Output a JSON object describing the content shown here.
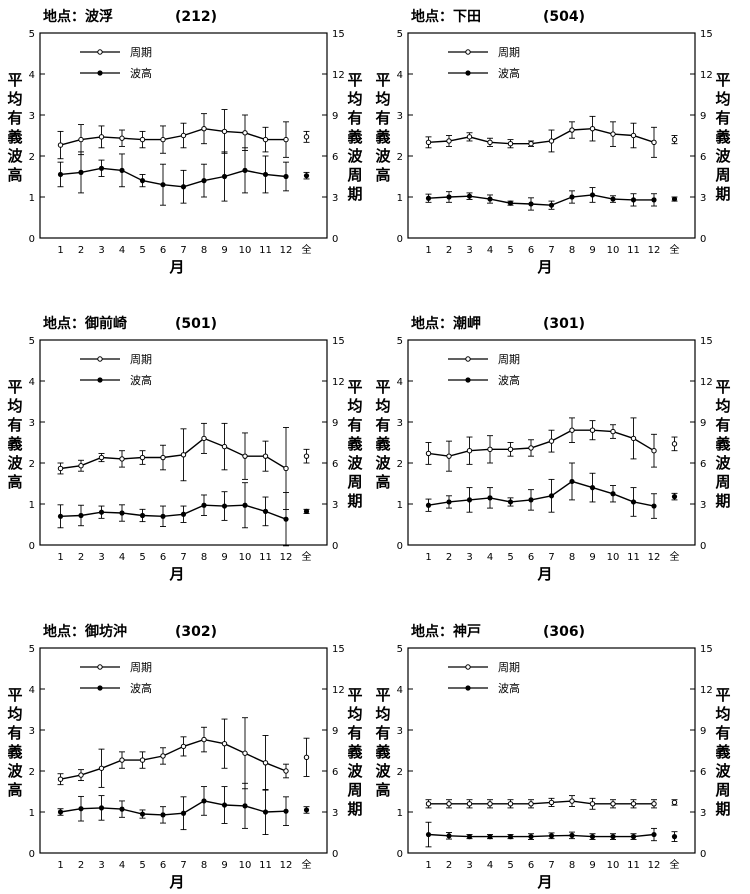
{
  "common": {
    "x_categories": [
      "1",
      "2",
      "3",
      "4",
      "5",
      "6",
      "7",
      "8",
      "9",
      "10",
      "11",
      "12",
      "全"
    ],
    "xlabel": "月",
    "ylabel_left": "平均有義波高",
    "ylabel_right": "平均有義波周期",
    "legend_period": "周期",
    "legend_height": "波高",
    "left_ticks": [
      "0",
      "1",
      "2",
      "3",
      "4",
      "5"
    ],
    "right_ticks": [
      "0",
      "3",
      "6",
      "9",
      "12",
      "15"
    ]
  },
  "chart_data": [
    {
      "type": "line",
      "title": "地点：波浮",
      "code": "(212)",
      "categories": [
        "1",
        "2",
        "3",
        "4",
        "5",
        "6",
        "7",
        "8",
        "9",
        "10",
        "11",
        "12"
      ],
      "xlabel": "月",
      "ylabel": "平均有義波高",
      "y2label": "平均有義波周期",
      "ylim": [
        0,
        5
      ],
      "y2lim": [
        0,
        15
      ],
      "legend": "top-left",
      "series": [
        {
          "name": "周期",
          "axis": "right",
          "marker": "open",
          "values": [
            6.8,
            7.2,
            7.4,
            7.3,
            7.2,
            7.2,
            7.5,
            8.0,
            7.8,
            7.7,
            7.2,
            7.2
          ],
          "errors": [
            1.0,
            1.1,
            0.8,
            0.6,
            0.6,
            1.0,
            0.9,
            1.1,
            1.6,
            1.3,
            0.9,
            1.3
          ],
          "overall": 7.4,
          "overall_error": 0.4
        },
        {
          "name": "波高",
          "axis": "left",
          "marker": "filled",
          "values": [
            1.55,
            1.6,
            1.7,
            1.65,
            1.4,
            1.3,
            1.25,
            1.4,
            1.5,
            1.65,
            1.55,
            1.5
          ],
          "errors": [
            0.3,
            0.5,
            0.2,
            0.4,
            0.15,
            0.5,
            0.4,
            0.4,
            0.6,
            0.55,
            0.45,
            0.35
          ],
          "overall": 1.52,
          "overall_error": 0.08
        }
      ]
    },
    {
      "type": "line",
      "title": "地点：下田",
      "code": "(504)",
      "categories": [
        "1",
        "2",
        "3",
        "4",
        "5",
        "6",
        "7",
        "8",
        "9",
        "10",
        "11",
        "12"
      ],
      "xlabel": "月",
      "ylabel": "平均有義波高",
      "y2label": "平均有義波周期",
      "ylim": [
        0,
        5
      ],
      "y2lim": [
        0,
        15
      ],
      "legend": "top-left",
      "series": [
        {
          "name": "周期",
          "axis": "right",
          "marker": "open",
          "values": [
            7.0,
            7.1,
            7.4,
            7.0,
            6.9,
            6.9,
            7.1,
            7.9,
            8.0,
            7.6,
            7.5,
            7.0
          ],
          "errors": [
            0.4,
            0.4,
            0.3,
            0.3,
            0.3,
            0.2,
            0.8,
            0.6,
            0.9,
            0.9,
            0.9,
            1.1
          ],
          "overall": 7.2,
          "overall_error": 0.3
        },
        {
          "name": "波高",
          "axis": "left",
          "marker": "filled",
          "values": [
            0.97,
            1.0,
            1.02,
            0.95,
            0.85,
            0.83,
            0.8,
            1.0,
            1.05,
            0.95,
            0.93,
            0.93
          ],
          "errors": [
            0.1,
            0.13,
            0.08,
            0.1,
            0.05,
            0.15,
            0.1,
            0.15,
            0.18,
            0.08,
            0.15,
            0.15
          ],
          "overall": 0.95,
          "overall_error": 0.05
        }
      ]
    },
    {
      "type": "line",
      "title": "地点：御前崎",
      "code": "(501)",
      "categories": [
        "1",
        "2",
        "3",
        "4",
        "5",
        "6",
        "7",
        "8",
        "9",
        "10",
        "11",
        "12"
      ],
      "xlabel": "月",
      "ylabel": "平均有義波高",
      "y2label": "平均有義波周期",
      "ylim": [
        0,
        5
      ],
      "y2lim": [
        0,
        15
      ],
      "legend": "top-left",
      "series": [
        {
          "name": "周期",
          "axis": "right",
          "marker": "open",
          "values": [
            5.6,
            5.8,
            6.4,
            6.3,
            6.4,
            6.4,
            6.6,
            7.8,
            7.2,
            6.5,
            6.5,
            5.6
          ],
          "errors": [
            0.4,
            0.4,
            0.3,
            0.6,
            0.5,
            0.9,
            1.9,
            1.1,
            1.7,
            1.7,
            1.1,
            3.0
          ],
          "overall": 6.5,
          "overall_error": 0.5
        },
        {
          "name": "波高",
          "axis": "left",
          "marker": "filled",
          "values": [
            0.7,
            0.72,
            0.8,
            0.78,
            0.72,
            0.7,
            0.75,
            0.97,
            0.95,
            0.97,
            0.82,
            0.63
          ],
          "errors": [
            0.28,
            0.25,
            0.15,
            0.2,
            0.15,
            0.25,
            0.2,
            0.25,
            0.35,
            0.55,
            0.35,
            0.65
          ],
          "overall": 0.82,
          "overall_error": 0.05
        }
      ]
    },
    {
      "type": "line",
      "title": "地点：潮岬",
      "code": "(301)",
      "categories": [
        "1",
        "2",
        "3",
        "4",
        "5",
        "6",
        "7",
        "8",
        "9",
        "10",
        "11",
        "12"
      ],
      "xlabel": "月",
      "ylabel": "平均有義波高",
      "y2label": "平均有義波周期",
      "ylim": [
        0,
        5
      ],
      "y2lim": [
        0,
        15
      ],
      "legend": "top-left",
      "series": [
        {
          "name": "周期",
          "axis": "right",
          "marker": "open",
          "values": [
            6.7,
            6.5,
            6.9,
            7.0,
            7.0,
            7.1,
            7.6,
            8.4,
            8.4,
            8.3,
            7.8,
            6.9
          ],
          "errors": [
            0.8,
            1.1,
            1.0,
            1.0,
            0.5,
            0.6,
            0.8,
            0.9,
            0.7,
            0.5,
            1.5,
            1.2
          ],
          "overall": 7.4,
          "overall_error": 0.5
        },
        {
          "name": "波高",
          "axis": "left",
          "marker": "filled",
          "values": [
            0.97,
            1.05,
            1.1,
            1.15,
            1.05,
            1.1,
            1.2,
            1.55,
            1.4,
            1.25,
            1.05,
            0.95
          ],
          "errors": [
            0.15,
            0.15,
            0.3,
            0.25,
            0.1,
            0.25,
            0.4,
            0.45,
            0.35,
            0.2,
            0.35,
            0.3
          ],
          "overall": 1.18,
          "overall_error": 0.08
        }
      ]
    },
    {
      "type": "line",
      "title": "地点：御坊沖",
      "code": "(302)",
      "categories": [
        "1",
        "2",
        "3",
        "4",
        "5",
        "6",
        "7",
        "8",
        "9",
        "10",
        "11",
        "12"
      ],
      "xlabel": "月",
      "ylabel": "平均有義波高",
      "y2label": "平均有義波周期",
      "ylim": [
        0,
        5
      ],
      "y2lim": [
        0,
        15
      ],
      "legend": "top-left",
      "series": [
        {
          "name": "周期",
          "axis": "right",
          "marker": "open",
          "values": [
            5.4,
            5.7,
            6.2,
            6.8,
            6.8,
            7.1,
            7.8,
            8.3,
            8.0,
            7.3,
            6.6,
            6.0
          ],
          "errors": [
            0.4,
            0.4,
            1.4,
            0.6,
            0.6,
            0.6,
            0.7,
            0.9,
            1.8,
            2.6,
            2.0,
            0.5
          ],
          "overall": 7.0,
          "overall_error": 1.4
        },
        {
          "name": "波高",
          "axis": "left",
          "marker": "filled",
          "values": [
            1.0,
            1.08,
            1.1,
            1.07,
            0.95,
            0.93,
            0.97,
            1.27,
            1.17,
            1.15,
            1.0,
            1.02
          ],
          "errors": [
            0.08,
            0.3,
            0.3,
            0.2,
            0.1,
            0.2,
            0.4,
            0.35,
            0.45,
            0.55,
            0.55,
            0.35
          ],
          "overall": 1.05,
          "overall_error": 0.08
        }
      ]
    },
    {
      "type": "line",
      "title": "地点：神戸",
      "code": "(306)",
      "categories": [
        "1",
        "2",
        "3",
        "4",
        "5",
        "6",
        "7",
        "8",
        "9",
        "10",
        "11",
        "12"
      ],
      "xlabel": "月",
      "ylabel": "平均有義波高",
      "y2label": "平均有義波周期",
      "ylim": [
        0,
        5
      ],
      "y2lim": [
        0,
        15
      ],
      "legend": "top-left",
      "series": [
        {
          "name": "周期",
          "axis": "right",
          "marker": "open",
          "values": [
            3.6,
            3.6,
            3.6,
            3.6,
            3.6,
            3.6,
            3.7,
            3.8,
            3.6,
            3.6,
            3.6,
            3.6
          ],
          "errors": [
            0.3,
            0.3,
            0.3,
            0.3,
            0.3,
            0.3,
            0.3,
            0.4,
            0.4,
            0.3,
            0.3,
            0.3
          ],
          "overall": 3.7,
          "overall_error": 0.2
        },
        {
          "name": "波高",
          "axis": "left",
          "marker": "filled",
          "values": [
            0.45,
            0.42,
            0.4,
            0.4,
            0.4,
            0.4,
            0.42,
            0.43,
            0.4,
            0.4,
            0.4,
            0.45
          ],
          "errors": [
            0.3,
            0.08,
            0.05,
            0.05,
            0.05,
            0.07,
            0.07,
            0.08,
            0.07,
            0.07,
            0.07,
            0.15
          ],
          "overall": 0.4,
          "overall_error": 0.12
        }
      ]
    }
  ]
}
